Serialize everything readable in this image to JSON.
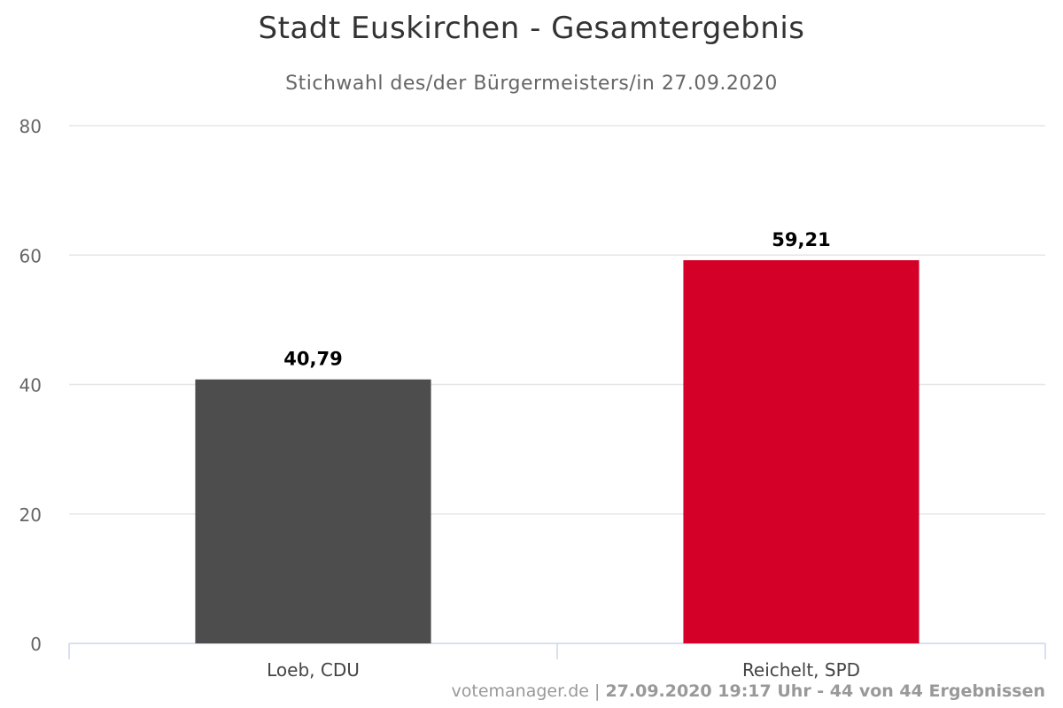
{
  "chart_data": {
    "type": "bar",
    "title": "Stadt Euskirchen - Gesamtergebnis",
    "subtitle": "Stichwahl des/der Bürgermeisters/in 27.09.2020",
    "categories": [
      "Loeb, CDU",
      "Reichelt, SPD"
    ],
    "values": [
      40.79,
      59.21
    ],
    "data_labels": [
      "40,79",
      "59,21"
    ],
    "colors": [
      "#4d4d4d",
      "#d50028"
    ],
    "ylim": [
      0,
      80
    ],
    "yticks": [
      0,
      20,
      40,
      60,
      80
    ],
    "xlabel": "",
    "ylabel": "",
    "grid": true
  },
  "footer": {
    "source": "votemanager.de",
    "separator": "|",
    "status": "27.09.2020 19:17 Uhr - 44 von 44 Ergebnissen"
  }
}
